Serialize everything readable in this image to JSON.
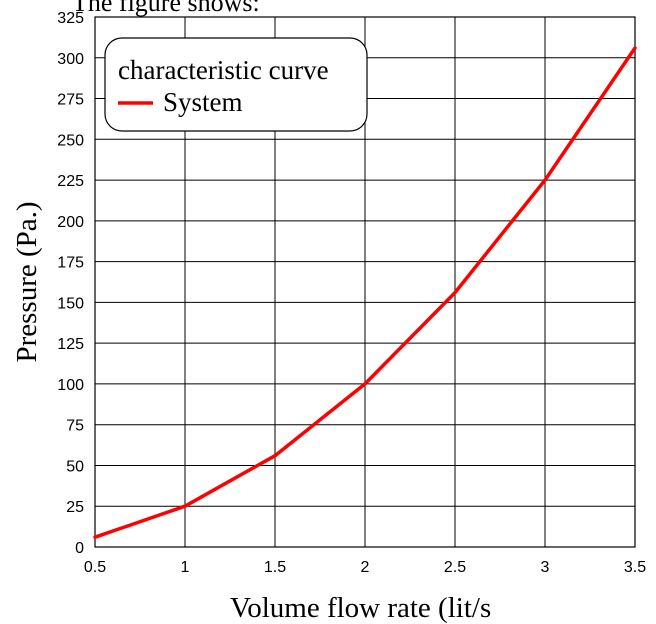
{
  "top_text": "The figure shows:",
  "chart_data": {
    "type": "line",
    "title": "",
    "xlabel": "Volume flow rate (lit/s",
    "ylabel": "Pressure (Pa.)",
    "xlim": [
      0.5,
      3.5
    ],
    "ylim": [
      0,
      325
    ],
    "xticks": [
      "0.5",
      "1",
      "1.5",
      "2",
      "2.5",
      "3",
      "3.5"
    ],
    "yticks": [
      "0",
      "25",
      "50",
      "75",
      "100",
      "125",
      "150",
      "175",
      "200",
      "225",
      "250",
      "275",
      "300",
      "325"
    ],
    "grid": true,
    "legend": {
      "title": "characteristic curve",
      "placement": "top-left"
    },
    "series": [
      {
        "name": "System",
        "color": "#ff0000",
        "x": [
          0.5,
          1,
          1.5,
          2,
          2.5,
          3,
          3.5
        ],
        "y": [
          6,
          25,
          56,
          100,
          156,
          225,
          306
        ]
      }
    ]
  }
}
